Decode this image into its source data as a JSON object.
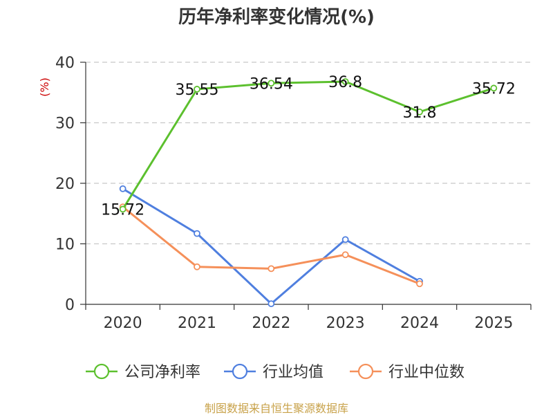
{
  "chart_data": {
    "type": "line",
    "title": "历年净利率变化情况(%)",
    "ylabel": "(%)",
    "categories": [
      "2020",
      "2021",
      "2022",
      "2023",
      "2024",
      "2025"
    ],
    "ylim": [
      0,
      40
    ],
    "yticks": [
      0,
      10,
      20,
      30,
      40
    ],
    "grid": true,
    "legend_position": "bottom",
    "series": [
      {
        "name": "公司净利率",
        "color": "#5cc02e",
        "values": [
          15.72,
          35.55,
          36.54,
          36.8,
          31.8,
          35.72
        ],
        "labels": [
          "15.72",
          "35.55",
          "36.54",
          "36.8",
          "31.8",
          "35.72"
        ]
      },
      {
        "name": "行业均值",
        "color": "#4f7fdf",
        "values": [
          19.1,
          11.7,
          0.1,
          10.7,
          3.8,
          null
        ]
      },
      {
        "name": "行业中位数",
        "color": "#f5905a",
        "values": [
          16.1,
          6.2,
          5.9,
          8.2,
          3.4,
          null
        ]
      }
    ],
    "source": "制图数据来自恒生聚源数据库"
  }
}
